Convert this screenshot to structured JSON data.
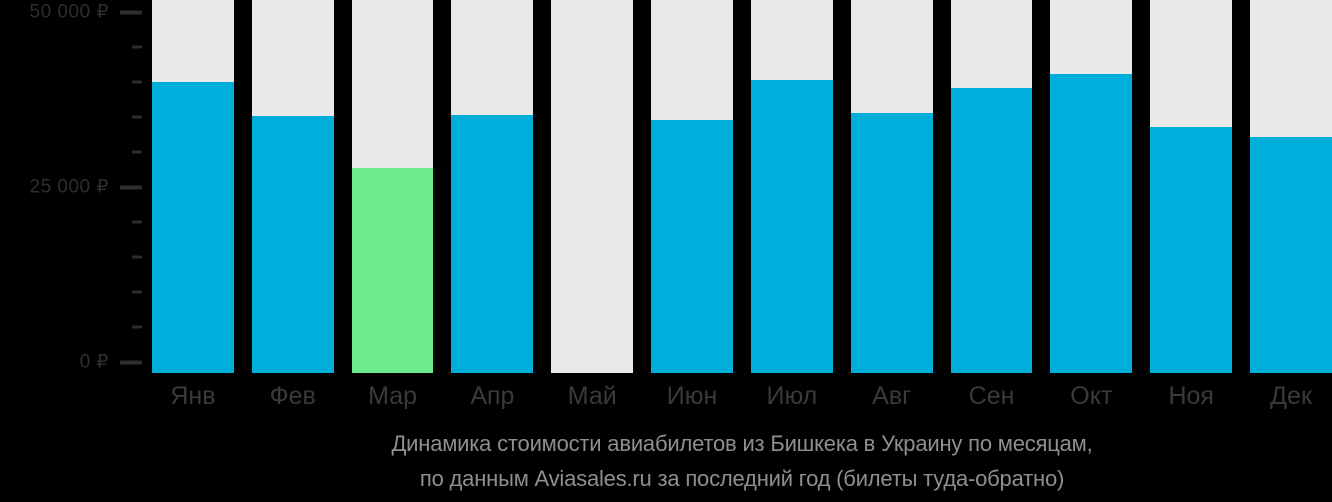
{
  "colors": {
    "background": "#000000",
    "bar_default": "#00AEDB",
    "bar_lowest": "#6CEC8A",
    "column_track": "#E9E9E9",
    "axis_text": "#2E2E2E",
    "month_text": "#3A3A3A",
    "caption_text": "#8F8F8F"
  },
  "chart_data": {
    "type": "bar",
    "title": "Динамика стоимости авиабилетов из Бишкека в Украину по месяцам, по данным Aviasales.ru за последний год (билеты туда-обратно)",
    "categories": [
      "Янв",
      "Фев",
      "Мар",
      "Апр",
      "Май",
      "Июн",
      "Июл",
      "Авг",
      "Сен",
      "Окт",
      "Ноя",
      "Дек"
    ],
    "values": [
      40000,
      35100,
      27700,
      35300,
      null,
      34600,
      40300,
      35600,
      39100,
      41200,
      33600,
      32200
    ],
    "lowest_index": 2,
    "no_data_months": [
      "Май"
    ],
    "currency": "₽",
    "ylabel": "",
    "xlabel": "",
    "ylim": [
      0,
      50000
    ],
    "y_ticks": [
      {
        "value": 50000,
        "label": "50 000 ₽"
      },
      {
        "value": 45000
      },
      {
        "value": 40000
      },
      {
        "value": 35000
      },
      {
        "value": 30000
      },
      {
        "value": 25000,
        "label": "25 000 ₽"
      },
      {
        "value": 20000
      },
      {
        "value": 15000
      },
      {
        "value": 10000
      },
      {
        "value": 5000
      },
      {
        "value": 0,
        "label": "0 ₽"
      }
    ],
    "grid": false,
    "legend_position": "none"
  },
  "caption": {
    "line1": "Динамика стоимости авиабилетов из Бишкека в Украину по месяцам,",
    "line2": "по данным Aviasales.ru за последний год (билеты туда-обратно)"
  }
}
